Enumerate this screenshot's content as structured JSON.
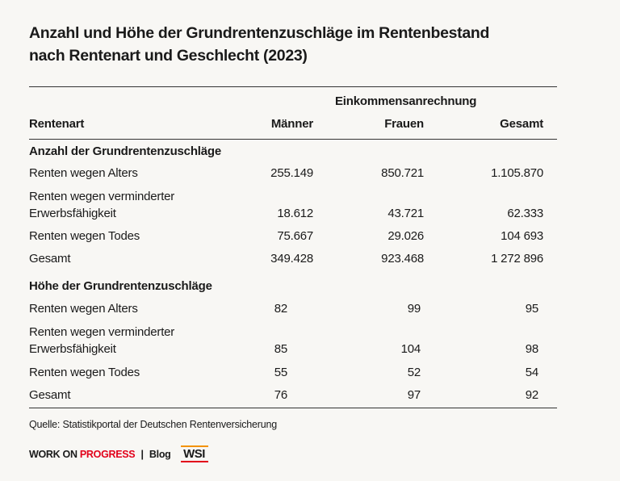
{
  "title": {
    "line1": "Anzahl und Höhe der Grundrentenzuschläge im Rentenbestand",
    "line2": "nach Rentenart und Geschlecht (2023)"
  },
  "chart_data": {
    "type": "table",
    "group_header": "Einkommensanrechnung",
    "columns": [
      "Rentenart",
      "Männer",
      "Frauen",
      "Gesamt"
    ],
    "sections": [
      {
        "heading": "Anzahl der Grundrentenzuschläge",
        "rows": [
          {
            "label": [
              "Renten wegen Alters"
            ],
            "values": [
              "255.149",
              "850.721",
              "1.105.870"
            ]
          },
          {
            "label": [
              "Renten wegen verminderter",
              "Erwerbsfähigkeit"
            ],
            "values": [
              "18.612",
              "43.721",
              "62.333"
            ]
          },
          {
            "label": [
              "Renten wegen Todes"
            ],
            "values": [
              "75.667",
              "29.026",
              "104 693"
            ]
          },
          {
            "label": [
              "Gesamt"
            ],
            "values": [
              "349.428",
              "923.468",
              "1 272 896"
            ]
          }
        ]
      },
      {
        "heading": "Höhe der Grundrentenzuschläge",
        "rows": [
          {
            "label": [
              "Renten wegen Alters"
            ],
            "values": [
              "82",
              "99",
              "95"
            ]
          },
          {
            "label": [
              "Renten wegen verminderter",
              "Erwerbsfähigkeit"
            ],
            "values": [
              "85",
              "104",
              "98"
            ]
          },
          {
            "label": [
              "Renten wegen Todes"
            ],
            "values": [
              "55",
              "52",
              "54"
            ]
          },
          {
            "label": [
              "Gesamt"
            ],
            "values": [
              "76",
              "97",
              "92"
            ]
          }
        ]
      }
    ]
  },
  "source": "Quelle: Statistikportal der Deutschen Rentenversicherung",
  "footer": {
    "brand_part1": "WORK ON",
    "brand_part2": "PROGRESS",
    "separator": "|",
    "blog": "Blog",
    "logo": "WSI"
  },
  "colors": {
    "accent_red": "#e2001a",
    "logo_orange": "#f39200",
    "background": "#f8f7f4"
  }
}
